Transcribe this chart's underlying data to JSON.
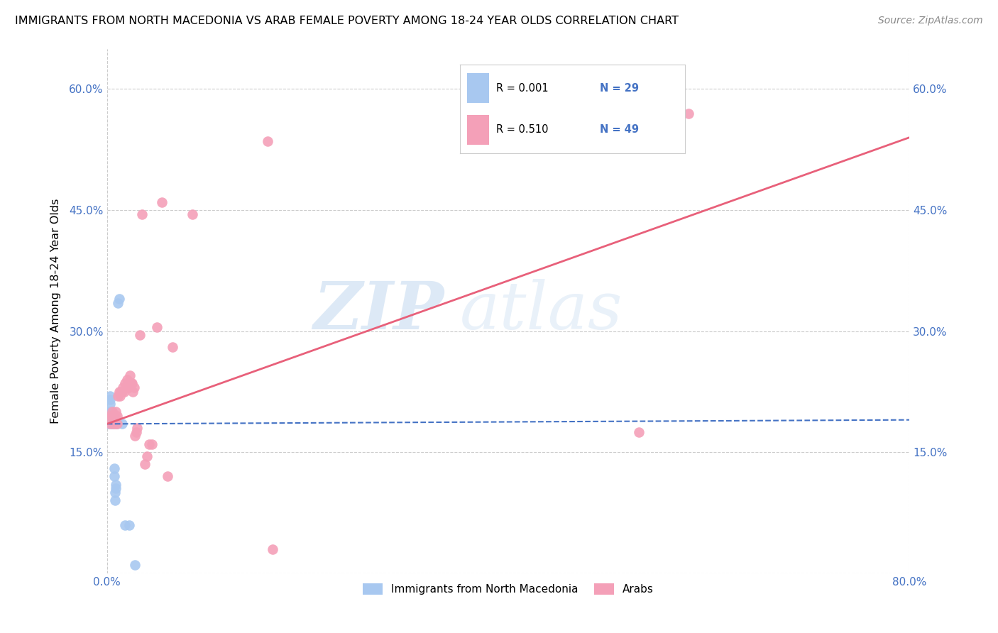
{
  "title": "IMMIGRANTS FROM NORTH MACEDONIA VS ARAB FEMALE POVERTY AMONG 18-24 YEAR OLDS CORRELATION CHART",
  "source": "Source: ZipAtlas.com",
  "ylabel": "Female Poverty Among 18-24 Year Olds",
  "xlim": [
    0.0,
    0.8
  ],
  "ylim": [
    0.0,
    0.65
  ],
  "xticks": [
    0.0,
    0.8
  ],
  "xticklabels": [
    "0.0%",
    "80.0%"
  ],
  "yticks": [
    0.0,
    0.15,
    0.3,
    0.45,
    0.6
  ],
  "yticklabels": [
    "",
    "15.0%",
    "30.0%",
    "45.0%",
    "60.0%"
  ],
  "blue_R": "R = 0.001",
  "blue_N": "N = 29",
  "pink_R": "R = 0.510",
  "pink_N": "N = 49",
  "blue_color": "#A8C8F0",
  "pink_color": "#F4A0B8",
  "blue_line_color": "#4472C4",
  "pink_line_color": "#E8607A",
  "tick_color": "#4472C4",
  "grid_color": "#CCCCCC",
  "watermark_zip": "ZIP",
  "watermark_atlas": "atlas",
  "legend_label_blue": "Immigrants from North Macedonia",
  "legend_label_pink": "Arabs",
  "blue_points_x": [
    0.001,
    0.002,
    0.002,
    0.003,
    0.003,
    0.003,
    0.004,
    0.004,
    0.004,
    0.005,
    0.005,
    0.005,
    0.005,
    0.006,
    0.006,
    0.006,
    0.007,
    0.007,
    0.008,
    0.008,
    0.009,
    0.009,
    0.01,
    0.011,
    0.012,
    0.015,
    0.018,
    0.022,
    0.028
  ],
  "blue_points_y": [
    0.185,
    0.19,
    0.2,
    0.21,
    0.215,
    0.22,
    0.185,
    0.195,
    0.2,
    0.185,
    0.19,
    0.195,
    0.2,
    0.185,
    0.19,
    0.195,
    0.12,
    0.13,
    0.09,
    0.1,
    0.105,
    0.11,
    0.185,
    0.335,
    0.34,
    0.185,
    0.06,
    0.06,
    0.01
  ],
  "pink_points_x": [
    0.003,
    0.004,
    0.005,
    0.005,
    0.006,
    0.006,
    0.007,
    0.007,
    0.008,
    0.008,
    0.009,
    0.009,
    0.01,
    0.01,
    0.011,
    0.012,
    0.013,
    0.014,
    0.015,
    0.016,
    0.017,
    0.018,
    0.019,
    0.02,
    0.021,
    0.022,
    0.023,
    0.024,
    0.025,
    0.026,
    0.027,
    0.028,
    0.029,
    0.03,
    0.033,
    0.035,
    0.038,
    0.04,
    0.042,
    0.045,
    0.05,
    0.055,
    0.06,
    0.065,
    0.085,
    0.16,
    0.165,
    0.53,
    0.58
  ],
  "pink_points_y": [
    0.185,
    0.195,
    0.195,
    0.2,
    0.185,
    0.195,
    0.19,
    0.195,
    0.185,
    0.195,
    0.185,
    0.2,
    0.185,
    0.195,
    0.22,
    0.225,
    0.22,
    0.225,
    0.225,
    0.23,
    0.225,
    0.235,
    0.23,
    0.24,
    0.235,
    0.23,
    0.245,
    0.235,
    0.235,
    0.225,
    0.23,
    0.17,
    0.175,
    0.18,
    0.295,
    0.445,
    0.135,
    0.145,
    0.16,
    0.16,
    0.305,
    0.46,
    0.12,
    0.28,
    0.445,
    0.535,
    0.03,
    0.175,
    0.57
  ],
  "blue_trend_x": [
    0.0,
    0.8
  ],
  "blue_trend_y": [
    0.185,
    0.19
  ],
  "pink_trend_x": [
    0.0,
    0.8
  ],
  "pink_trend_y": [
    0.185,
    0.54
  ]
}
